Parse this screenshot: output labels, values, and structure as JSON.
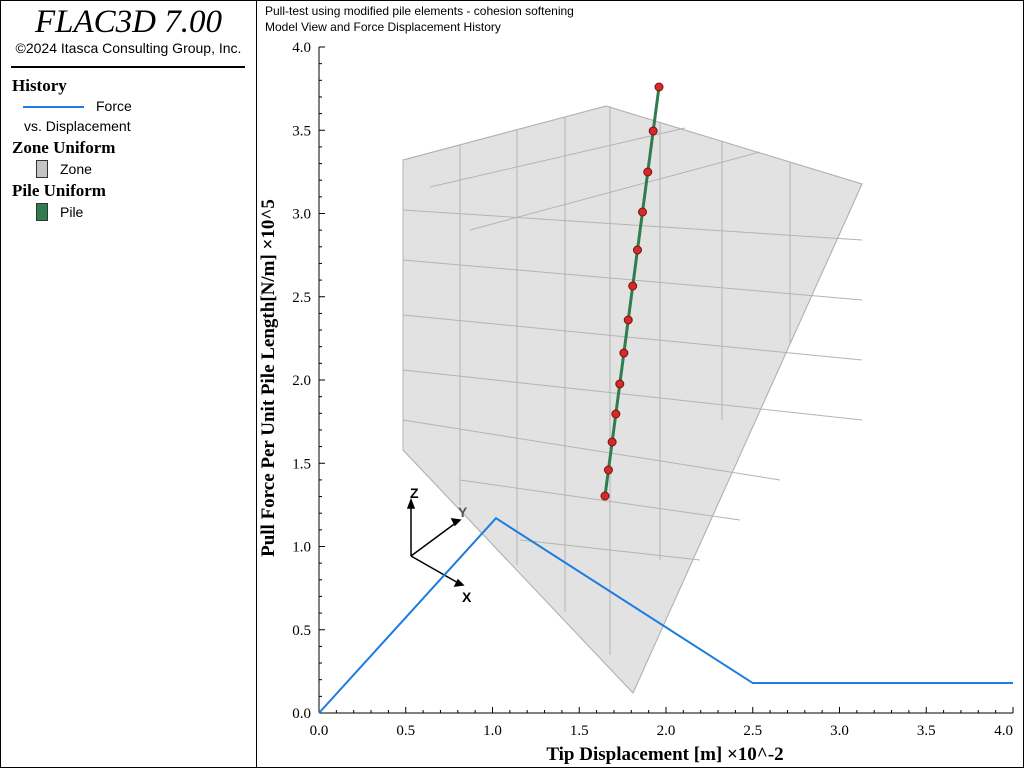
{
  "app": {
    "title": "FLAC3D 7.00",
    "copyright": "©2024 Itasca Consulting Group, Inc."
  },
  "legend": {
    "history_header": "History",
    "history_series": "Force",
    "history_series_sub": "vs. Displacement",
    "history_color": "#1c7ce0",
    "zone_header": "Zone Uniform",
    "zone_label": "Zone",
    "zone_color": "#c4c4c4",
    "pile_header": "Pile Uniform",
    "pile_label": "Pile",
    "pile_color": "#2e7d4f"
  },
  "plot": {
    "subtitle_1": "Pull-test using modified pile elements - cohesion softening",
    "subtitle_2": "Model View and Force Displacement History",
    "triad_x": "X",
    "triad_y": "Y",
    "triad_z": "Z"
  },
  "chart_data": {
    "type": "line",
    "title": "Model View and Force Displacement History",
    "xlabel": "Tip Displacement [m] ×10^-2",
    "ylabel": "Pull Force Per Unit Pile Length[N/m] ×10^5",
    "xlim": [
      0.0,
      4.0
    ],
    "ylim": [
      0.0,
      4.0
    ],
    "x_ticks": [
      "0.0",
      "0.5",
      "1.0",
      "1.5",
      "2.0",
      "2.5",
      "3.0",
      "3.5",
      "4.0"
    ],
    "y_ticks": [
      "0.0",
      "0.5",
      "1.0",
      "1.5",
      "2.0",
      "2.5",
      "3.0",
      "3.5",
      "4.0"
    ],
    "series": [
      {
        "name": "Force vs. Displacement",
        "x": [
          0.0,
          1.02,
          2.5,
          4.0
        ],
        "y": [
          0.0,
          1.17,
          0.18,
          0.18
        ]
      }
    ]
  }
}
